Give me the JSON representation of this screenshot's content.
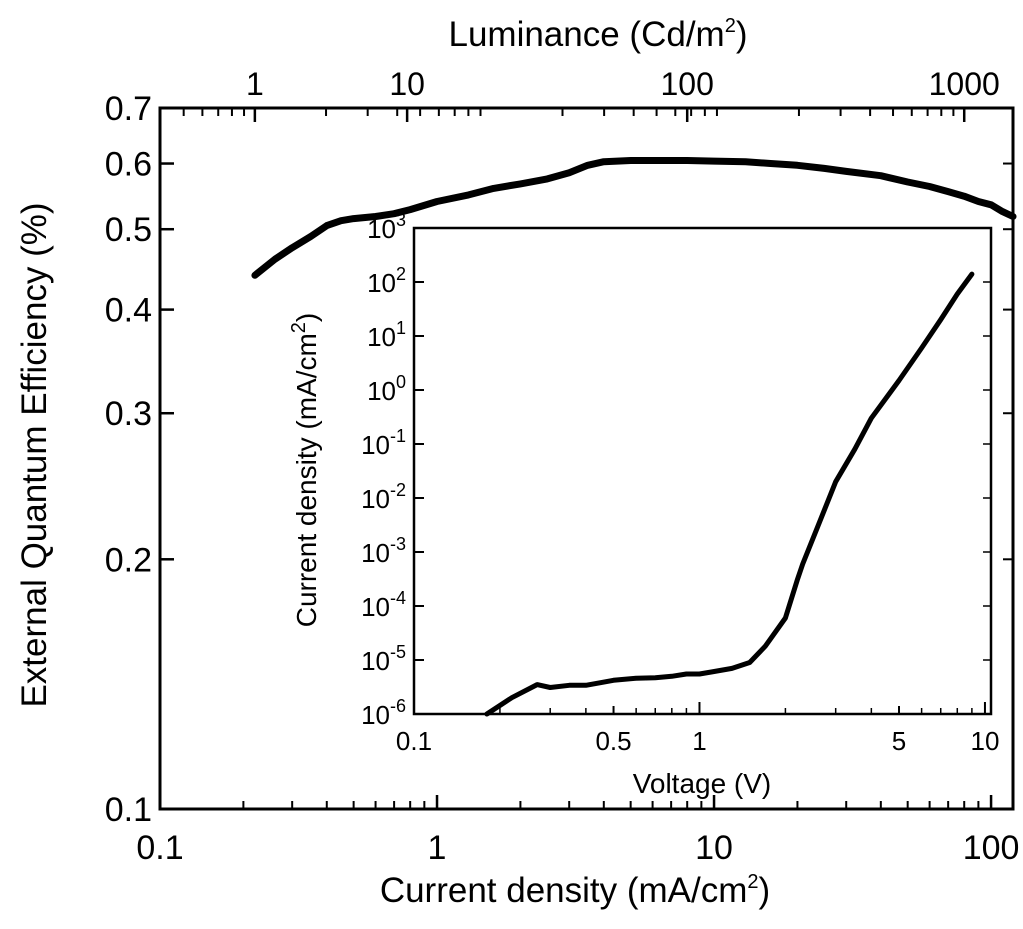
{
  "chart_data": [
    {
      "type": "line",
      "xlabel": "Current density  (mA/cm",
      "xlabel_sup": "2",
      "xlabel_tail": ")",
      "ylabel": "External Quantum Efficiency (%)",
      "x_scale": "log",
      "y_scale": "log",
      "xlim": [
        0.1,
        120
      ],
      "ylim": [
        0.1,
        0.7
      ],
      "x_ticks": [
        0.1,
        1,
        10,
        100
      ],
      "x_tick_labels": [
        "0.1",
        "1",
        "10",
        "100"
      ],
      "y_ticks": [
        0.1,
        0.2,
        0.3,
        0.4,
        0.5,
        0.6,
        0.7
      ],
      "y_tick_labels": [
        "0.1",
        "0.2",
        "0.3",
        "0.4",
        "0.5",
        "0.6",
        "0.7"
      ],
      "secondary_x_axis": {
        "label": "Luminance  (Cd/m",
        "label_sup": "2",
        "label_tail": ")",
        "scale": "log",
        "ticks": [
          1,
          10,
          100,
          1000
        ],
        "tick_labels": [
          "1",
          "10",
          "100",
          "1000"
        ],
        "tick_positions_current_density": [
          0.22,
          0.78,
          8.0,
          80.0
        ]
      },
      "grid": false,
      "series": [
        {
          "x": [
            0.22,
            0.26,
            0.3,
            0.35,
            0.4,
            0.45,
            0.5,
            0.6,
            0.7,
            0.8,
            1.0,
            1.3,
            1.6,
            2.0,
            2.5,
            3.0,
            3.5,
            4.0,
            5.0,
            6.0,
            8.0,
            10,
            13,
            16,
            20,
            25,
            30,
            40,
            50,
            60,
            70,
            80,
            90,
            100,
            110,
            120
          ],
          "y": [
            0.44,
            0.46,
            0.475,
            0.49,
            0.505,
            0.512,
            0.515,
            0.518,
            0.522,
            0.528,
            0.54,
            0.55,
            0.56,
            0.567,
            0.575,
            0.585,
            0.597,
            0.603,
            0.605,
            0.605,
            0.605,
            0.604,
            0.603,
            0.6,
            0.597,
            0.592,
            0.587,
            0.58,
            0.57,
            0.563,
            0.555,
            0.548,
            0.54,
            0.535,
            0.525,
            0.518
          ]
        }
      ]
    },
    {
      "type": "line",
      "inset": true,
      "xlabel": "Voltage (V)",
      "ylabel": "Current density (mA/cm",
      "ylabel_sup": "2",
      "ylabel_tail": ")",
      "x_scale": "log",
      "y_scale": "log",
      "xlim": [
        0.1,
        10.5
      ],
      "ylim": [
        1e-06,
        1000
      ],
      "x_ticks": [
        0.1,
        0.5,
        1,
        5,
        10
      ],
      "x_tick_labels": [
        "0.1",
        "0.5",
        "1",
        "5",
        "10"
      ],
      "y_ticks": [
        1e-06,
        1e-05,
        0.0001,
        0.001,
        0.01,
        0.1,
        1,
        10,
        100,
        1000
      ],
      "y_tick_base": "10",
      "y_tick_exponents": [
        "-6",
        "-5",
        "-4",
        "-3",
        "-2",
        "-1",
        "0",
        "1",
        "2",
        "3"
      ],
      "grid": false,
      "series": [
        {
          "x": [
            0.18,
            0.22,
            0.27,
            0.3,
            0.35,
            0.4,
            0.45,
            0.5,
            0.6,
            0.7,
            0.8,
            0.9,
            1.0,
            1.1,
            1.3,
            1.5,
            1.7,
            2.0,
            2.2,
            2.3,
            2.6,
            3.0,
            3.5,
            4.0,
            5.0,
            6.0,
            7.0,
            8.0,
            9.0
          ],
          "y": [
            1e-06,
            2e-06,
            3.5e-06,
            3.1e-06,
            3.4e-06,
            3.4e-06,
            3.8e-06,
            4.2e-06,
            4.6e-06,
            4.7e-06,
            5e-06,
            5.5e-06,
            5.5e-06,
            6e-06,
            7e-06,
            9e-06,
            1.8e-05,
            6e-05,
            0.0003,
            0.0006,
            0.003,
            0.02,
            0.08,
            0.3,
            1.5,
            6,
            20,
            60,
            140
          ]
        }
      ]
    }
  ]
}
